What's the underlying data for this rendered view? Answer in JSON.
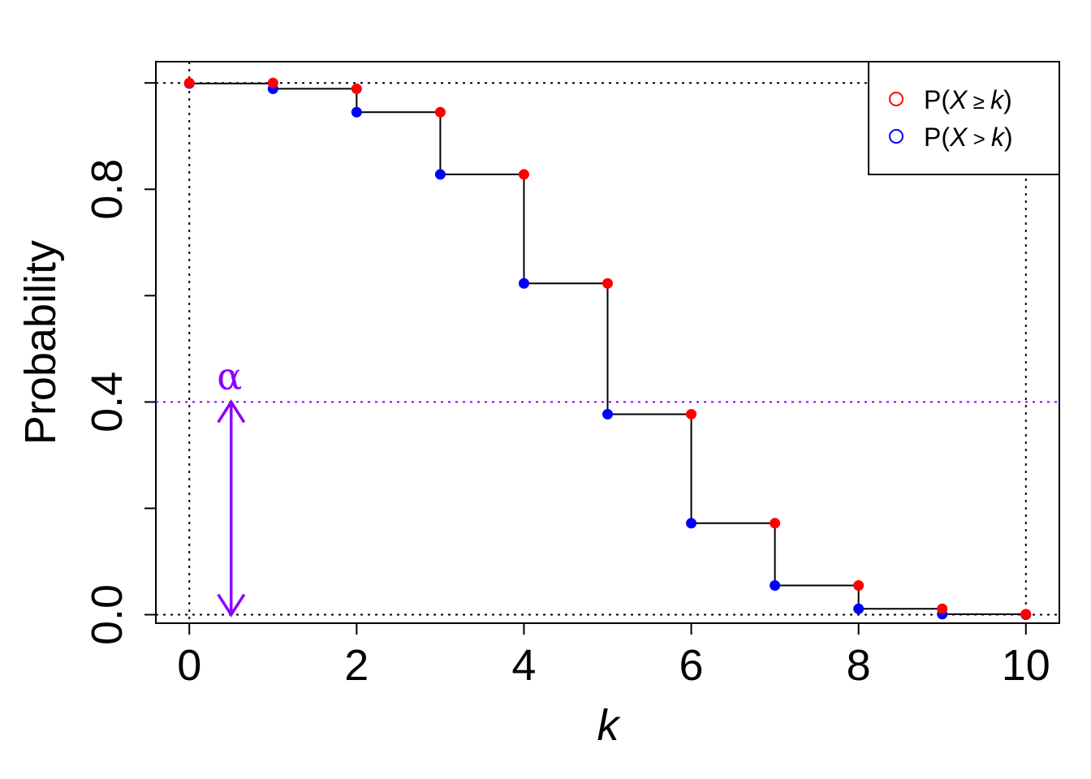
{
  "chart_data": {
    "type": "step",
    "xlabel": "k",
    "ylabel": "Probability",
    "xlim": [
      -0.4,
      10.4
    ],
    "ylim": [
      -0.016,
      1.04
    ],
    "x_ticks": [
      0,
      2,
      4,
      6,
      8,
      10
    ],
    "x_tick_labels": [
      "0",
      "2",
      "4",
      "6",
      "8",
      "10"
    ],
    "y_ticks": [
      0.0,
      0.2,
      0.4,
      0.6,
      0.8,
      1.0
    ],
    "y_tick_labels": [
      "0.0",
      "",
      "0.4",
      "",
      "0.8",
      ""
    ],
    "x": [
      0,
      1,
      2,
      3,
      4,
      5,
      6,
      7,
      8,
      9,
      10
    ],
    "series": [
      {
        "name": "P(X ≥ k)",
        "color": "#ff0000",
        "values": [
          1.0,
          1.0,
          0.989,
          0.945,
          0.828,
          0.623,
          0.377,
          0.172,
          0.055,
          0.011,
          0.001
        ]
      },
      {
        "name": "P(X > k)",
        "color": "#0000ff",
        "values": [
          0.999,
          0.989,
          0.945,
          0.828,
          0.623,
          0.377,
          0.172,
          0.055,
          0.011,
          0.001,
          0.0
        ]
      }
    ],
    "reference_lines": {
      "horizontal_dotted": [
        0,
        1
      ],
      "vertical_dotted": [
        0,
        10
      ],
      "alpha_line": 0.4
    },
    "annotation": {
      "label": "α",
      "color": "#8b00ff",
      "x": 0.5,
      "from": 0.0,
      "to": 0.4
    },
    "legend": {
      "position": "top-right",
      "items": [
        {
          "prefix": "P",
          "var": "X",
          "op": "≥",
          "arg": "k",
          "color": "#ff0000"
        },
        {
          "prefix": "P",
          "var": "X",
          "op": ">",
          "arg": "k",
          "color": "#0000ff"
        }
      ]
    }
  }
}
